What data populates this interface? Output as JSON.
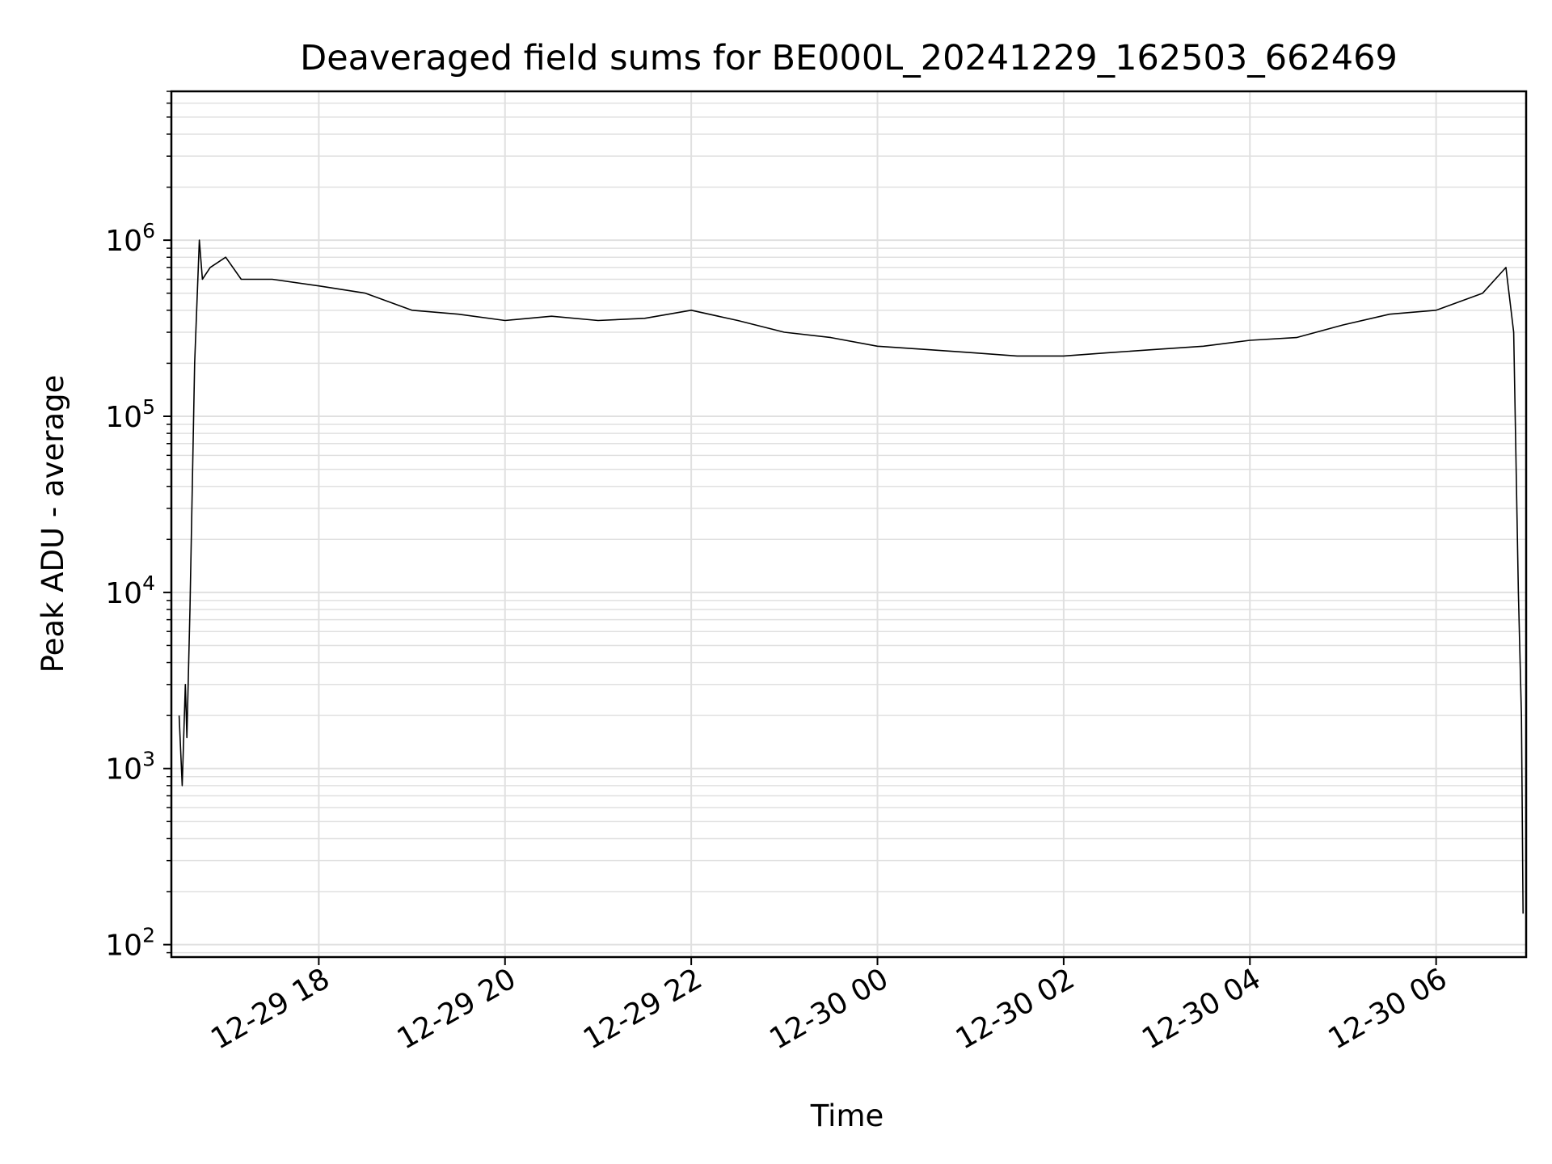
{
  "chart_data": {
    "type": "line",
    "title": "Deaveraged field sums for BE000L_20241229_162503_662469",
    "xlabel": "Time",
    "ylabel": "Peak ADU - average",
    "yscale": "log",
    "ylim": [
      85,
      7000000
    ],
    "xlim": [
      "2024-12-29 16:25",
      "2024-12-30 06:58"
    ],
    "grid": true,
    "series_color": "#000000",
    "grid_color": "#e0e0e0",
    "x_ticks": [
      {
        "label": "12-29 18",
        "t": "2024-12-29 18:00"
      },
      {
        "label": "12-29 20",
        "t": "2024-12-29 20:00"
      },
      {
        "label": "12-29 22",
        "t": "2024-12-29 22:00"
      },
      {
        "label": "12-30 00",
        "t": "2024-12-30 00:00"
      },
      {
        "label": "12-30 02",
        "t": "2024-12-30 02:00"
      },
      {
        "label": "12-30 04",
        "t": "2024-12-30 04:00"
      },
      {
        "label": "12-30 06",
        "t": "2024-12-30 06:00"
      }
    ],
    "y_ticks": [
      {
        "base": "10",
        "exp": "2",
        "value": 100
      },
      {
        "base": "10",
        "exp": "3",
        "value": 1000
      },
      {
        "base": "10",
        "exp": "4",
        "value": 10000
      },
      {
        "base": "10",
        "exp": "5",
        "value": 100000
      },
      {
        "base": "10",
        "exp": "6",
        "value": 1000000
      }
    ],
    "series": [
      {
        "x": [
          "2024-12-29 16:30",
          "2024-12-29 16:32",
          "2024-12-29 16:34",
          "2024-12-29 16:35",
          "2024-12-29 16:37",
          "2024-12-29 16:40",
          "2024-12-29 16:43",
          "2024-12-29 16:45",
          "2024-12-29 16:50",
          "2024-12-29 17:00",
          "2024-12-29 17:10",
          "2024-12-29 17:30",
          "2024-12-29 18:00",
          "2024-12-29 18:30",
          "2024-12-29 19:00",
          "2024-12-29 19:30",
          "2024-12-29 20:00",
          "2024-12-29 20:30",
          "2024-12-29 21:00",
          "2024-12-29 21:30",
          "2024-12-29 22:00",
          "2024-12-29 22:30",
          "2024-12-29 23:00",
          "2024-12-29 23:30",
          "2024-12-30 00:00",
          "2024-12-30 00:30",
          "2024-12-30 01:00",
          "2024-12-30 01:30",
          "2024-12-30 02:00",
          "2024-12-30 02:30",
          "2024-12-30 03:00",
          "2024-12-30 03:30",
          "2024-12-30 04:00",
          "2024-12-30 04:30",
          "2024-12-30 05:00",
          "2024-12-30 05:30",
          "2024-12-30 06:00",
          "2024-12-30 06:30",
          "2024-12-30 06:45",
          "2024-12-30 06:50",
          "2024-12-30 06:53",
          "2024-12-30 06:55",
          "2024-12-30 06:56"
        ],
        "y": [
          2000,
          800,
          3000,
          1500,
          8000,
          200000,
          1000000,
          600000,
          700000,
          800000,
          600000,
          600000,
          550000,
          500000,
          400000,
          380000,
          350000,
          370000,
          350000,
          360000,
          400000,
          350000,
          300000,
          280000,
          250000,
          240000,
          230000,
          220000,
          220000,
          230000,
          240000,
          250000,
          270000,
          280000,
          330000,
          380000,
          400000,
          500000,
          700000,
          300000,
          10000,
          2000,
          150
        ]
      }
    ]
  }
}
